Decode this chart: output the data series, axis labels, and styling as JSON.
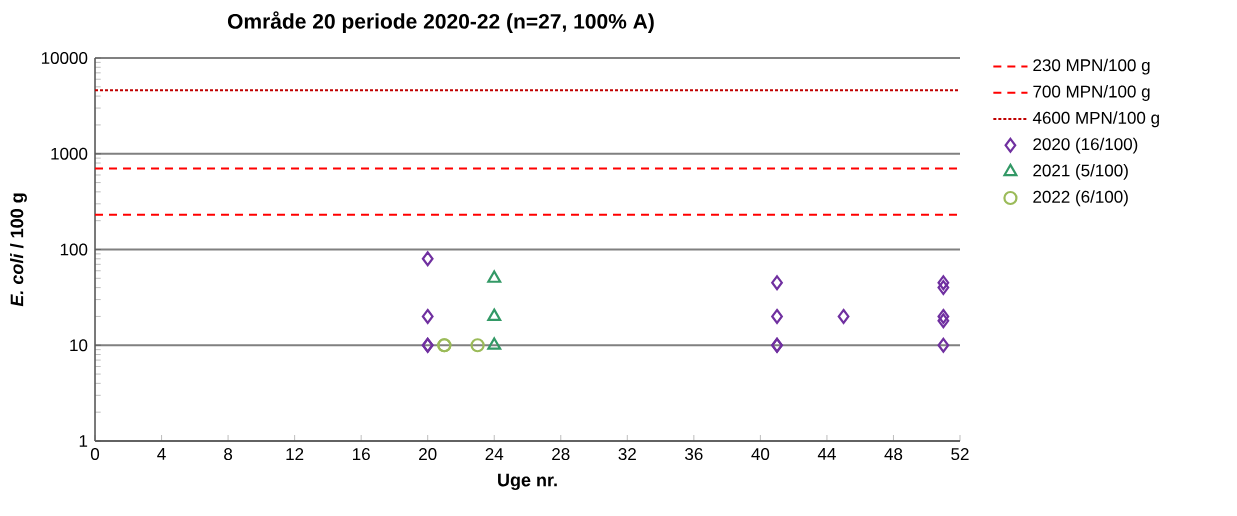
{
  "chart_data": {
    "type": "scatter",
    "title": "Område 20 periode 2020-22 (n=27, 100% A)",
    "xlabel": "Uge nr.",
    "ylabel": "*E. coli* / 100 g",
    "xlim": [
      0,
      52
    ],
    "xticks": [
      0,
      4,
      8,
      12,
      16,
      20,
      24,
      28,
      32,
      36,
      40,
      44,
      48,
      52
    ],
    "ylim": [
      1,
      10000
    ],
    "yticks": [
      1,
      10,
      100,
      1000,
      10000
    ],
    "log": "y",
    "grid": "y",
    "legend": "right",
    "ref_lines": [
      {
        "axis": "y",
        "value": 230,
        "label": "230 MPN/100 g",
        "color": "#ff0000",
        "line_style": "dashed"
      },
      {
        "axis": "y",
        "value": 700,
        "label": "700 MPN/100 g",
        "color": "#ff0000",
        "line_style": "dashed"
      },
      {
        "axis": "y",
        "value": 4600,
        "label": "4600 MPN/100 g",
        "color": "#c00000",
        "line_style": "dotted"
      }
    ],
    "series": [
      {
        "name": "2020 (16/100)",
        "color": "#7030a0",
        "marker": "diamond",
        "x": [
          20,
          20,
          20,
          20,
          41,
          41,
          41,
          41,
          45,
          51,
          51,
          51,
          51,
          51
        ],
        "values": [
          80,
          20,
          10,
          10,
          45,
          20,
          10,
          10,
          20,
          45,
          40,
          20,
          18,
          10
        ]
      },
      {
        "name": "2021 (5/100)",
        "color": "#339966",
        "marker": "triangle",
        "x": [
          24,
          24,
          24
        ],
        "values": [
          50,
          20,
          10
        ]
      },
      {
        "name": "2022 (6/100)",
        "color": "#9bbb59",
        "marker": "circle",
        "x": [
          21,
          21,
          23
        ],
        "values": [
          10,
          10,
          10
        ]
      }
    ]
  }
}
